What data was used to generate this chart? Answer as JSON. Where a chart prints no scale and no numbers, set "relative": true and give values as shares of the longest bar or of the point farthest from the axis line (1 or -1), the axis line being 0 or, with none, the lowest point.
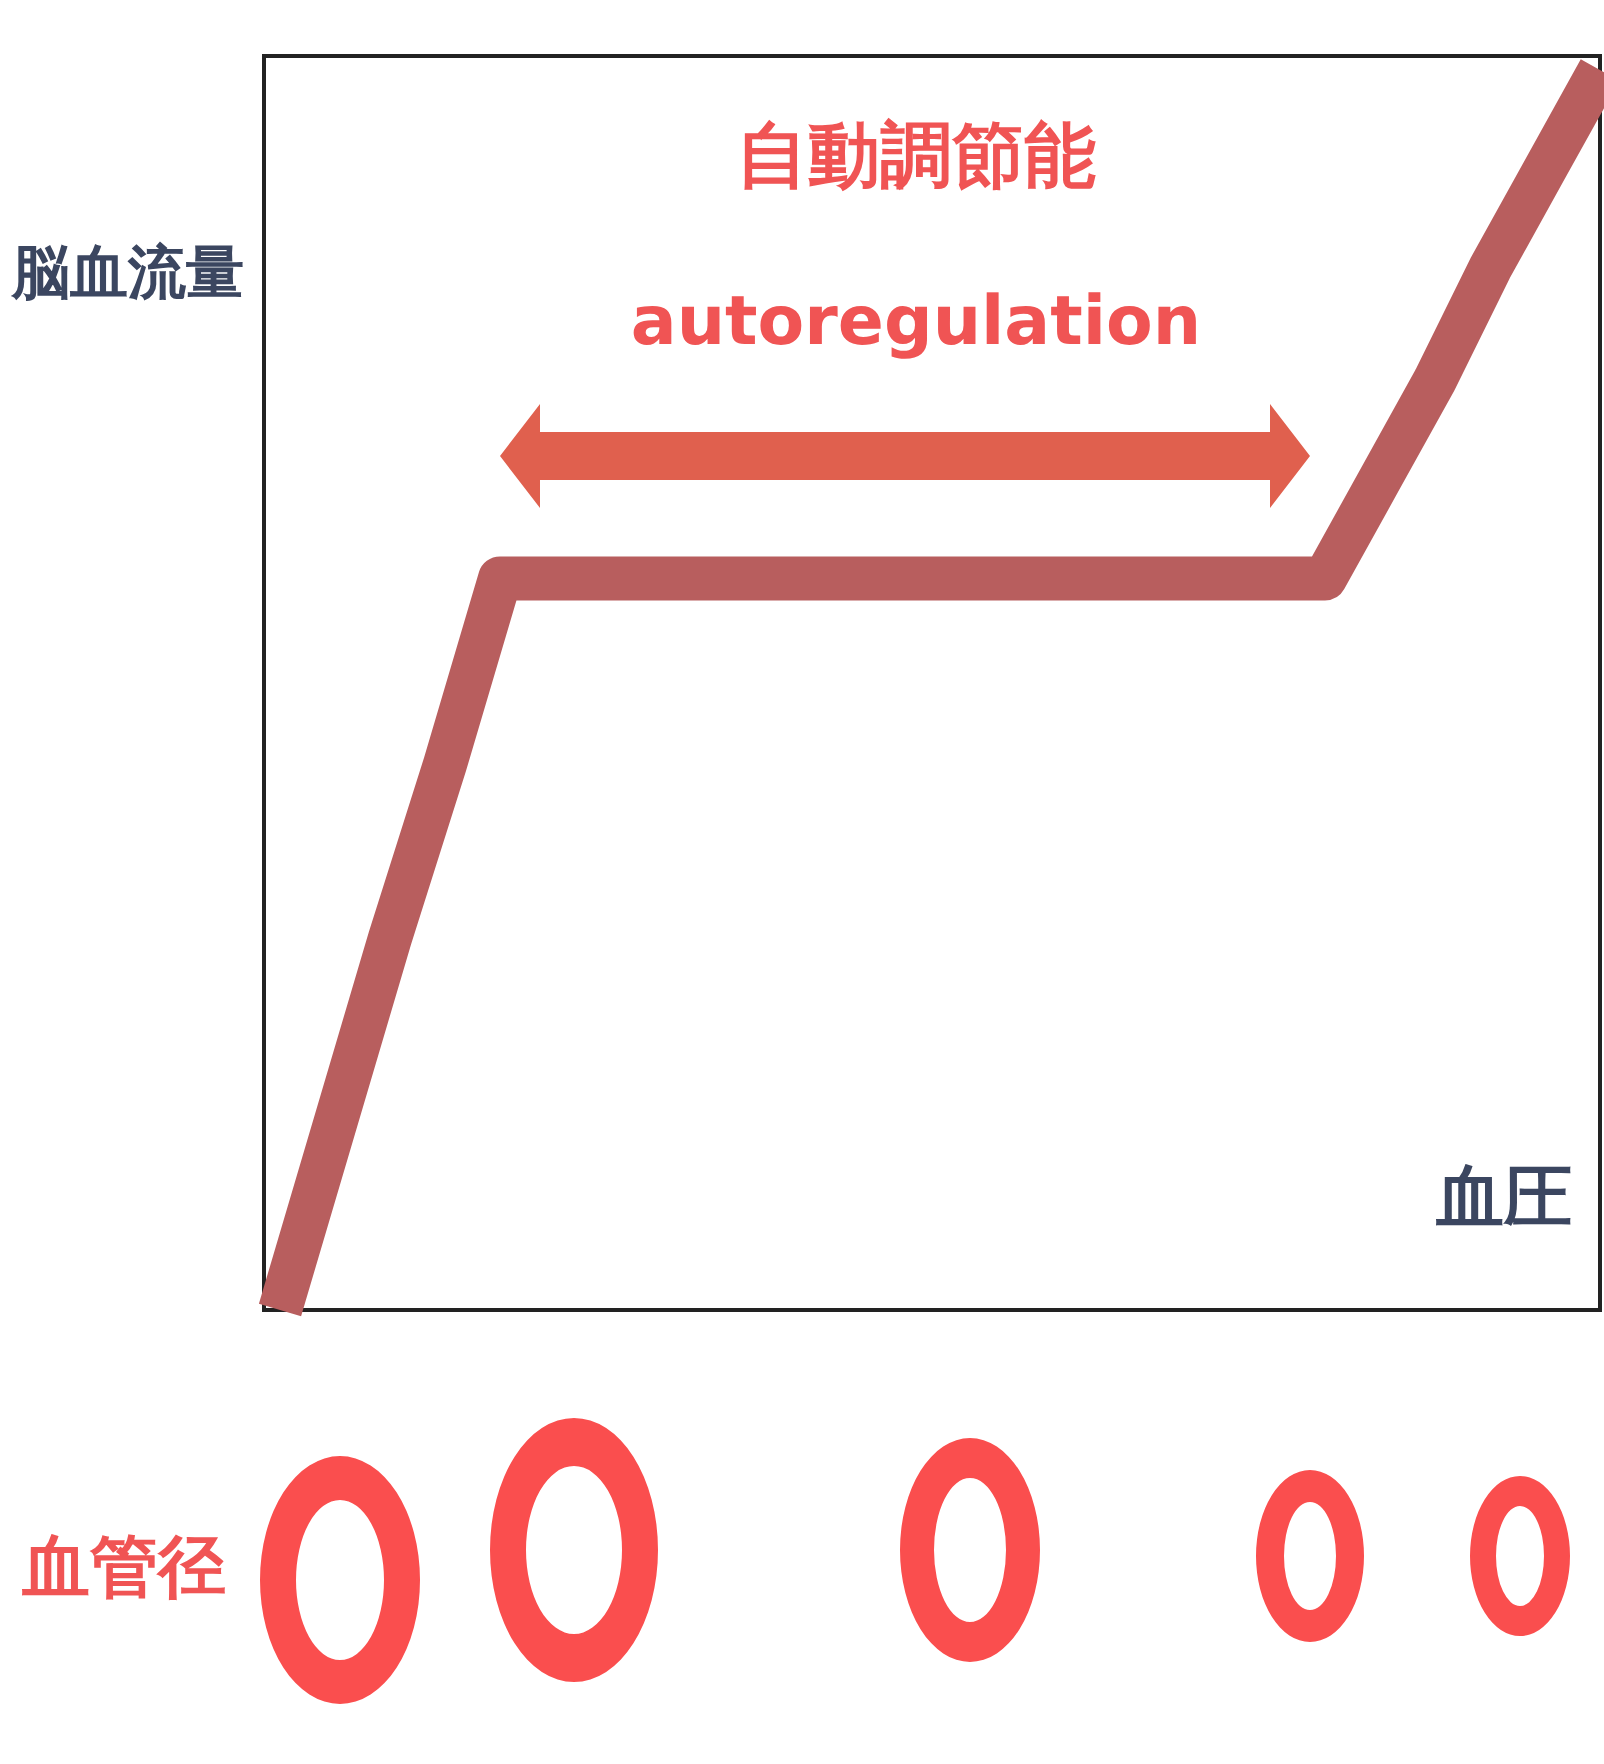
{
  "chart_data": {
    "type": "line",
    "relative": true,
    "ylabel": "脳血流量",
    "xlabel": "血圧",
    "annotations": [
      "自動調節能",
      "autoregulation",
      "血管径"
    ],
    "categories": [
      null,
      null,
      null,
      null,
      null,
      null,
      null,
      null,
      null,
      null,
      null,
      null,
      null,
      null,
      null,
      null,
      null,
      null,
      null,
      null,
      null,
      null,
      null,
      null,
      null
    ],
    "series": [
      {
        "color": "#b85e5e",
        "values": [
          0,
          0.15,
          0.3,
          0.44,
          0.59,
          0.59,
          0.59,
          0.59,
          0.59,
          0.59,
          0.59,
          0.59,
          0.59,
          0.59,
          0.59,
          0.59,
          0.59,
          0.59,
          0.59,
          0.59,
          0.67,
          0.75,
          0.84,
          0.92,
          1
        ]
      }
    ]
  }
}
